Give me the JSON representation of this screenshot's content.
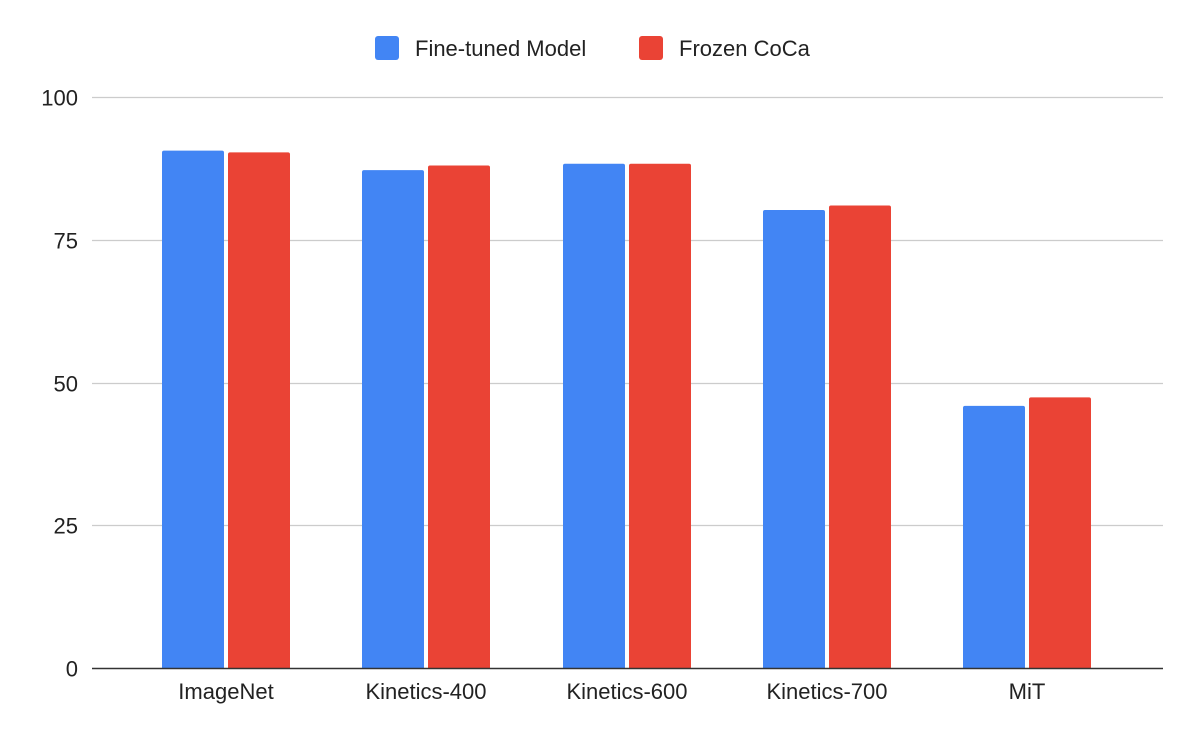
{
  "chart_data": {
    "type": "bar",
    "title": "",
    "xlabel": "",
    "ylabel": "",
    "categories": [
      "ImageNet",
      "Kinetics-400",
      "Kinetics-600",
      "Kinetics-700",
      "MiT"
    ],
    "series": [
      {
        "name": "Fine-tuned Model",
        "color": "#4285f4",
        "values": [
          90.6,
          87.2,
          88.3,
          80.2,
          45.9
        ]
      },
      {
        "name": "Frozen CoCa",
        "color": "#ea4335",
        "values": [
          90.3,
          88.0,
          88.3,
          81.0,
          47.4
        ]
      }
    ],
    "ylim": [
      0,
      100
    ],
    "yticks": [
      0,
      25,
      50,
      75,
      100
    ],
    "grid": true,
    "legend": "top-center"
  }
}
